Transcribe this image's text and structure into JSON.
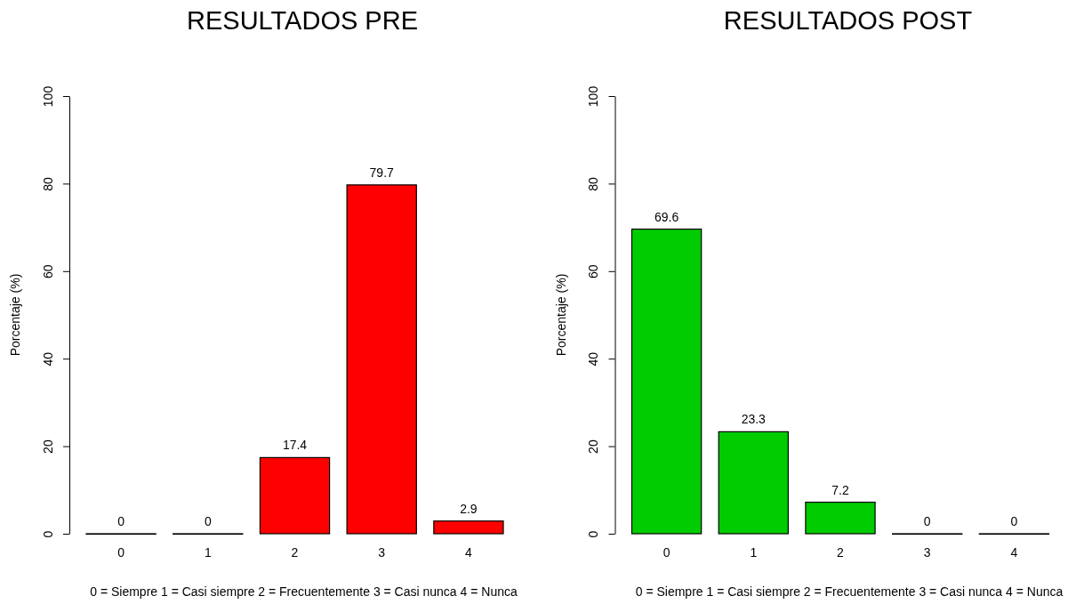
{
  "chart_data": [
    {
      "type": "bar",
      "title": "RESULTADOS PRE",
      "ylabel": "Porcentaje (%)",
      "xlabel": "0 = Siempre 1 = Casi siempre 2 = Frecuentemente 3 = Casi nunca 4 = Nunca",
      "categories": [
        "0",
        "1",
        "2",
        "3",
        "4"
      ],
      "values": [
        0,
        0,
        17.4,
        79.7,
        2.9
      ],
      "color": "#ff0000",
      "ylim": [
        0,
        100
      ],
      "yticks": [
        0,
        20,
        40,
        60,
        80,
        100
      ],
      "data_labels": true
    },
    {
      "type": "bar",
      "title": "RESULTADOS POST",
      "ylabel": "Porcentaje (%)",
      "xlabel": "0 = Siempre 1 = Casi siempre 2 = Frecuentemente 3 = Casi nunca 4 = Nunca",
      "categories": [
        "0",
        "1",
        "2",
        "3",
        "4"
      ],
      "values": [
        69.6,
        23.3,
        7.2,
        0,
        0
      ],
      "color": "#00cc00",
      "ylim": [
        0,
        100
      ],
      "yticks": [
        0,
        20,
        40,
        60,
        80,
        100
      ],
      "data_labels": true
    }
  ]
}
